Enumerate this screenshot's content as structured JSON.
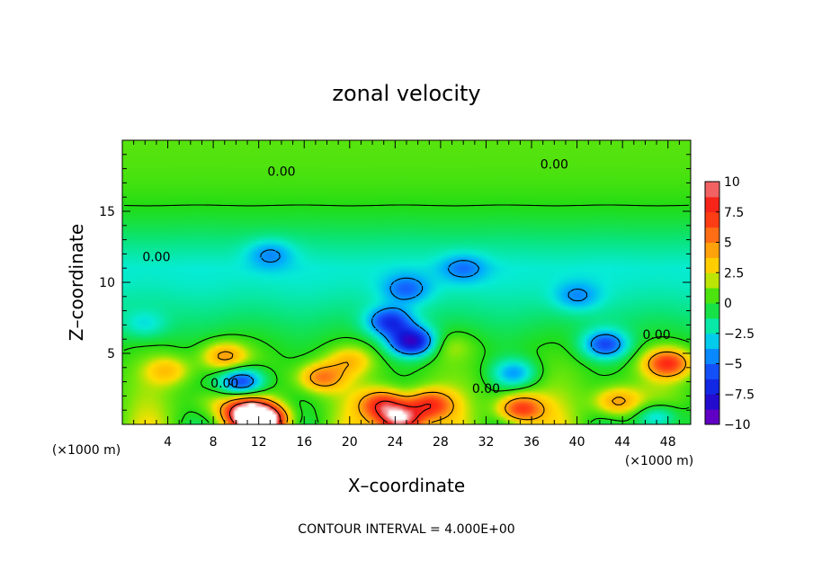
{
  "chart_data": {
    "type": "heatmap",
    "title": "zonal velocity",
    "xlabel": "X–coordinate",
    "ylabel": "Z–coordinate",
    "x_unit_left": "(×1000 m)",
    "x_unit_right": "(×1000 m)",
    "xlim": [
      0,
      50
    ],
    "ylim": [
      0,
      20
    ],
    "x_ticks": [
      4,
      8,
      12,
      16,
      20,
      24,
      28,
      32,
      36,
      40,
      44,
      48
    ],
    "x_tick_labels": [
      "4",
      "8",
      "12",
      "16",
      "20",
      "24",
      "28",
      "32",
      "36",
      "40",
      "44",
      "48"
    ],
    "y_ticks": [
      5,
      10,
      15
    ],
    "y_tick_labels": [
      "5",
      "10",
      "15"
    ],
    "colorbar": {
      "range": [
        -10,
        10
      ],
      "ticks": [
        10,
        7.5,
        5,
        2.5,
        0,
        -2.5,
        -5,
        -7.5,
        -10
      ],
      "tick_labels": [
        "10",
        "7.5",
        "5",
        "2.5",
        "0",
        "−2.5",
        "−5",
        "−7.5",
        "−10"
      ],
      "colors": [
        "#f6a6a8",
        "#ff2a14",
        "#ff8a16",
        "#ffe000",
        "#22dd14",
        "#06ecd6",
        "#1468ff",
        "#1018d8",
        "#8a00c4"
      ]
    },
    "contour_labels": [
      "0.00",
      "0.00",
      "0.00",
      "0.00",
      "0.00",
      "0.00"
    ],
    "footer": "CONTOUR INTERVAL = 4.000E+00",
    "features": [
      {
        "x": 11,
        "z": 0.8,
        "value": 10
      },
      {
        "x": 12.5,
        "z": 0.3,
        "value": 11
      },
      {
        "x": 23,
        "z": 1.4,
        "value": 7
      },
      {
        "x": 24.5,
        "z": 0.3,
        "value": 10
      },
      {
        "x": 27,
        "z": 1.4,
        "value": 6.5
      },
      {
        "x": 35,
        "z": 1.1,
        "value": 7
      },
      {
        "x": 17.5,
        "z": 3.3,
        "value": 5
      },
      {
        "x": 48,
        "z": 4.3,
        "value": 7
      },
      {
        "x": 43.5,
        "z": 1.6,
        "value": 4.5
      },
      {
        "x": 4,
        "z": 3.8,
        "value": 3
      },
      {
        "x": 9,
        "z": 4.8,
        "value": 4.5
      },
      {
        "x": 20,
        "z": 4.5,
        "value": 3
      },
      {
        "x": 10.5,
        "z": 3.0,
        "value": -7
      },
      {
        "x": 25.5,
        "z": 5.8,
        "value": -8
      },
      {
        "x": 23.5,
        "z": 7.2,
        "value": -5.5
      },
      {
        "x": 42.5,
        "z": 5.6,
        "value": -5.5
      },
      {
        "x": 34.5,
        "z": 3.6,
        "value": -4
      },
      {
        "x": 47,
        "z": 0.4,
        "value": -5
      },
      {
        "x": 25,
        "z": 9.5,
        "value": -3
      },
      {
        "x": 30,
        "z": 11,
        "value": -2.5
      },
      {
        "x": 13,
        "z": 12,
        "value": -2.5
      },
      {
        "x": 40,
        "z": 9,
        "value": -2.5
      },
      {
        "x": 2,
        "z": 7,
        "value": -2
      },
      {
        "x": 29,
        "z": 5.5,
        "value": 1.5
      },
      {
        "x": 8,
        "z": 1.5,
        "value": 1.5
      }
    ]
  }
}
